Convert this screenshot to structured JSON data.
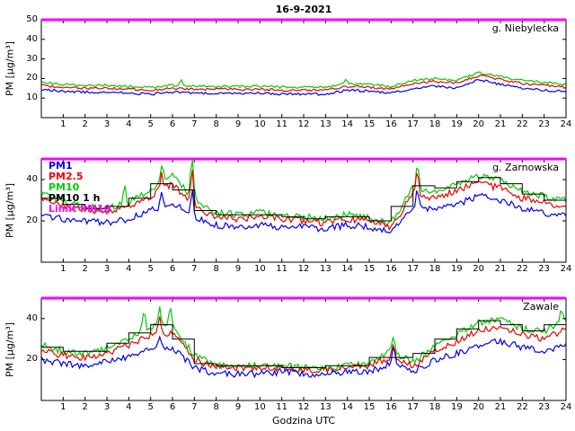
{
  "title": "16-9-2021",
  "xlabel": "Godzina UTC",
  "ylabel": "PM [µg/m³]",
  "legend": {
    "items": [
      {
        "label": "PM1",
        "color": "#0000ee"
      },
      {
        "label": "PM2.5",
        "color": "#ee0000"
      },
      {
        "label": "PM10",
        "color": "#00cc00"
      },
      {
        "label": "PM10 1 h",
        "color": "#000000"
      },
      {
        "label": "Limit PM10",
        "color": "#ff00ff"
      }
    ]
  },
  "chart_data": [
    {
      "type": "line",
      "station": "g. Niebylecka",
      "xlim": [
        0,
        24
      ],
      "ylim": [
        0,
        50
      ],
      "xticks": [
        1,
        2,
        3,
        4,
        5,
        6,
        7,
        8,
        9,
        10,
        11,
        12,
        13,
        14,
        15,
        16,
        17,
        18,
        19,
        20,
        21,
        22,
        23,
        24
      ],
      "yticks": [
        10,
        20,
        30,
        40,
        50
      ],
      "limit_pm10": 50,
      "x_hours": [
        0,
        1,
        2,
        3,
        4,
        5,
        6,
        7,
        8,
        9,
        10,
        11,
        12,
        13,
        14,
        15,
        16,
        17,
        18,
        19,
        20,
        21,
        22,
        23,
        24
      ],
      "series": [
        {
          "name": "PM10",
          "color": "#00cc00",
          "values": [
            18,
            17,
            16.5,
            16.5,
            16,
            15.5,
            16.5,
            16,
            16,
            16,
            16,
            15.5,
            15.5,
            15.5,
            17.5,
            17,
            16,
            19,
            20,
            19,
            23,
            21,
            19,
            18,
            17
          ],
          "spikes": [
            [
              6.4,
              19
            ],
            [
              13.9,
              19
            ]
          ]
        },
        {
          "name": "PM2.5",
          "color": "#ee0000",
          "values": [
            16.5,
            15.5,
            15,
            15,
            14.5,
            14,
            15,
            14.5,
            14.5,
            14.5,
            14.5,
            14,
            14,
            14,
            16,
            15.5,
            14.5,
            17.5,
            18.5,
            17.5,
            21.5,
            19.5,
            17.5,
            16.5,
            15.5
          ],
          "spikes": []
        },
        {
          "name": "PM1",
          "color": "#0000ee",
          "values": [
            14.5,
            13.5,
            13,
            13,
            12.5,
            12,
            13,
            12.5,
            12.5,
            12.5,
            12.5,
            12,
            12,
            12,
            14,
            13.5,
            12.5,
            15,
            16,
            15,
            19.5,
            17,
            15,
            14,
            13.5
          ],
          "spikes": []
        }
      ],
      "pm10_1h": null
    },
    {
      "type": "line",
      "station": "g. Zarnowska",
      "xlim": [
        0,
        24
      ],
      "ylim": [
        0,
        50
      ],
      "xticks": [
        1,
        2,
        3,
        4,
        5,
        6,
        7,
        8,
        9,
        10,
        11,
        12,
        13,
        14,
        15,
        16,
        17,
        18,
        19,
        20,
        21,
        22,
        23,
        24
      ],
      "yticks": [
        20,
        40
      ],
      "limit_pm10": 50,
      "x_hours": [
        0,
        1,
        2,
        3,
        4,
        5,
        6,
        7,
        8,
        9,
        10,
        11,
        12,
        13,
        14,
        15,
        16,
        17,
        18,
        19,
        20,
        21,
        22,
        23,
        24
      ],
      "series": [
        {
          "name": "PM10",
          "color": "#00cc00",
          "values": [
            33,
            29,
            27,
            26,
            29,
            35,
            42,
            30,
            24,
            23,
            24,
            23,
            22,
            21,
            23,
            22,
            19,
            36,
            34,
            38,
            42,
            40,
            34,
            32,
            30
          ],
          "spikes": [
            [
              3.8,
              37
            ],
            [
              5.5,
              48
            ],
            [
              6.9,
              51
            ],
            [
              17.2,
              47
            ]
          ]
        },
        {
          "name": "PM2.5",
          "color": "#ee0000",
          "values": [
            30,
            27,
            25,
            24,
            27,
            32,
            38,
            27,
            22,
            21,
            22,
            21,
            20,
            19,
            21,
            20,
            17,
            33,
            31,
            35,
            38,
            36,
            31,
            29,
            27
          ],
          "spikes": [
            [
              5.5,
              44
            ],
            [
              6.9,
              46
            ],
            [
              17.2,
              43
            ]
          ]
        },
        {
          "name": "PM1",
          "color": "#0000ee",
          "values": [
            23,
            21,
            20,
            19,
            21,
            25,
            29,
            22,
            18,
            17,
            18,
            17,
            17,
            16,
            18,
            17,
            15,
            27,
            25,
            28,
            32,
            30,
            26,
            24,
            22
          ],
          "spikes": [
            [
              5.5,
              33
            ],
            [
              6.9,
              35
            ],
            [
              17.2,
              34
            ]
          ]
        }
      ],
      "pm10_1h": [
        31,
        28,
        26,
        27,
        31,
        38,
        35,
        25,
        23,
        23,
        23,
        22,
        21,
        22,
        22,
        20,
        27,
        37,
        36,
        39,
        41,
        38,
        33,
        30
      ]
    },
    {
      "type": "line",
      "station": "Zawale",
      "xlim": [
        0,
        24
      ],
      "ylim": [
        0,
        50
      ],
      "xticks": [
        1,
        2,
        3,
        4,
        5,
        6,
        7,
        8,
        9,
        10,
        11,
        12,
        13,
        14,
        15,
        16,
        17,
        18,
        19,
        20,
        21,
        22,
        23,
        24
      ],
      "yticks": [
        20,
        40
      ],
      "limit_pm10": 50,
      "x_hours": [
        0,
        1,
        2,
        3,
        4,
        5,
        6,
        7,
        8,
        9,
        10,
        11,
        12,
        13,
        14,
        15,
        16,
        17,
        18,
        19,
        20,
        21,
        22,
        23,
        24
      ],
      "series": [
        {
          "name": "PM10",
          "color": "#00cc00",
          "values": [
            27,
            24,
            23,
            26,
            30,
            36,
            37,
            22,
            17,
            17,
            17,
            17,
            16,
            16,
            17,
            18,
            24,
            19,
            27,
            32,
            38,
            40,
            35,
            34,
            40
          ],
          "spikes": [
            [
              4.7,
              43
            ],
            [
              5.4,
              46
            ],
            [
              5.9,
              45
            ],
            [
              16.1,
              31
            ],
            [
              23.8,
              44
            ]
          ]
        },
        {
          "name": "PM2.5",
          "color": "#ee0000",
          "values": [
            24,
            22,
            21,
            23,
            27,
            32,
            33,
            20,
            16,
            16,
            16,
            16,
            15,
            15,
            16,
            17,
            21,
            17,
            24,
            29,
            34,
            36,
            32,
            30,
            35
          ],
          "spikes": [
            [
              5.4,
              41
            ],
            [
              16.1,
              28
            ]
          ]
        },
        {
          "name": "PM1",
          "color": "#0000ee",
          "values": [
            20,
            18,
            17,
            19,
            21,
            25,
            26,
            16,
            13,
            13,
            13,
            14,
            13,
            13,
            14,
            14,
            18,
            14,
            20,
            23,
            27,
            29,
            26,
            24,
            27
          ],
          "spikes": [
            [
              5.4,
              31
            ],
            [
              16.1,
              26
            ]
          ]
        }
      ],
      "pm10_1h": [
        26,
        24,
        24,
        28,
        33,
        37,
        30,
        18,
        17,
        17,
        17,
        16,
        16,
        17,
        17,
        21,
        21,
        23,
        30,
        35,
        39,
        37,
        34,
        37
      ]
    }
  ],
  "limit_color": "#ff00ff"
}
